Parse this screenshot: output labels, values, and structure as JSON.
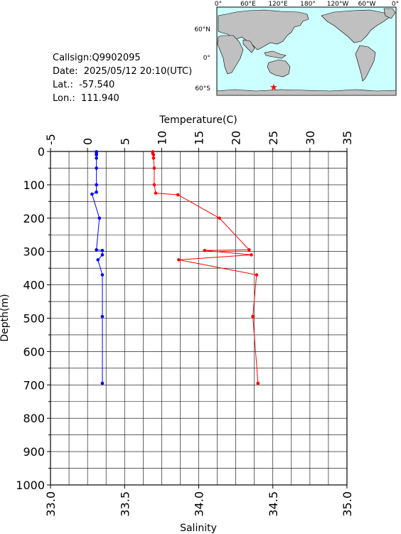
{
  "header": {
    "callsign": "Callsign:Q9902095",
    "date": "Date:  2025/05/12 20:10(UTC)",
    "lat": "Lat.:  -57.540",
    "lon": "Lon.:  111.940"
  },
  "map": {
    "top_ticks": [
      "0°",
      "60°E",
      "120°E",
      "180°",
      "120°W",
      "60°W",
      "0°"
    ],
    "lat_ticks": [
      "60°N",
      "0°",
      "60°S"
    ],
    "marker": {
      "lat": -57.54,
      "lon": 111.94,
      "symbol": "★",
      "color": "#ff0000"
    },
    "ocean_color": "#ccffff",
    "land_color": "#c0c0c0"
  },
  "chart_data": {
    "type": "line",
    "title": "",
    "ylabel": "Depth(m)",
    "y_axis": {
      "label": "Depth(m)",
      "range": [
        0,
        1000
      ],
      "inverted": true,
      "ticks": [
        0,
        100,
        200,
        300,
        400,
        500,
        600,
        700,
        800,
        900,
        1000
      ]
    },
    "x_top": {
      "label": "Temperature(C)",
      "range": [
        -5,
        35
      ],
      "ticks": [
        -5,
        0,
        5,
        10,
        15,
        20,
        25,
        30,
        35
      ]
    },
    "x_bottom": {
      "label": "Salinity",
      "range": [
        33.0,
        35.0
      ],
      "ticks": [
        "33.0",
        "33.5",
        "34.0",
        "34.5",
        "35.0"
      ]
    },
    "grid": true,
    "series": [
      {
        "axis": "temperature",
        "color": "#ff0000",
        "points": [
          [
            8.8,
            1
          ],
          [
            8.8,
            5
          ],
          [
            8.9,
            10
          ],
          [
            8.9,
            20
          ],
          [
            9.0,
            50
          ],
          [
            9.0,
            100
          ],
          [
            9.2,
            125
          ],
          [
            12.2,
            130
          ],
          [
            17.8,
            200
          ],
          [
            21.8,
            295
          ],
          [
            15.8,
            297
          ],
          [
            22.1,
            310
          ],
          [
            12.3,
            325
          ],
          [
            22.8,
            370
          ],
          [
            22.3,
            495
          ],
          [
            23.0,
            695
          ]
        ]
      },
      {
        "axis": "salinity",
        "color": "#0000ff",
        "points": [
          [
            33.31,
            1
          ],
          [
            33.31,
            5
          ],
          [
            33.31,
            10
          ],
          [
            33.31,
            20
          ],
          [
            33.31,
            50
          ],
          [
            33.31,
            100
          ],
          [
            33.31,
            122
          ],
          [
            33.28,
            128
          ],
          [
            33.33,
            200
          ],
          [
            33.31,
            295
          ],
          [
            33.35,
            297
          ],
          [
            33.35,
            310
          ],
          [
            33.32,
            325
          ],
          [
            33.35,
            370
          ],
          [
            33.35,
            495
          ],
          [
            33.35,
            695
          ]
        ]
      }
    ]
  }
}
